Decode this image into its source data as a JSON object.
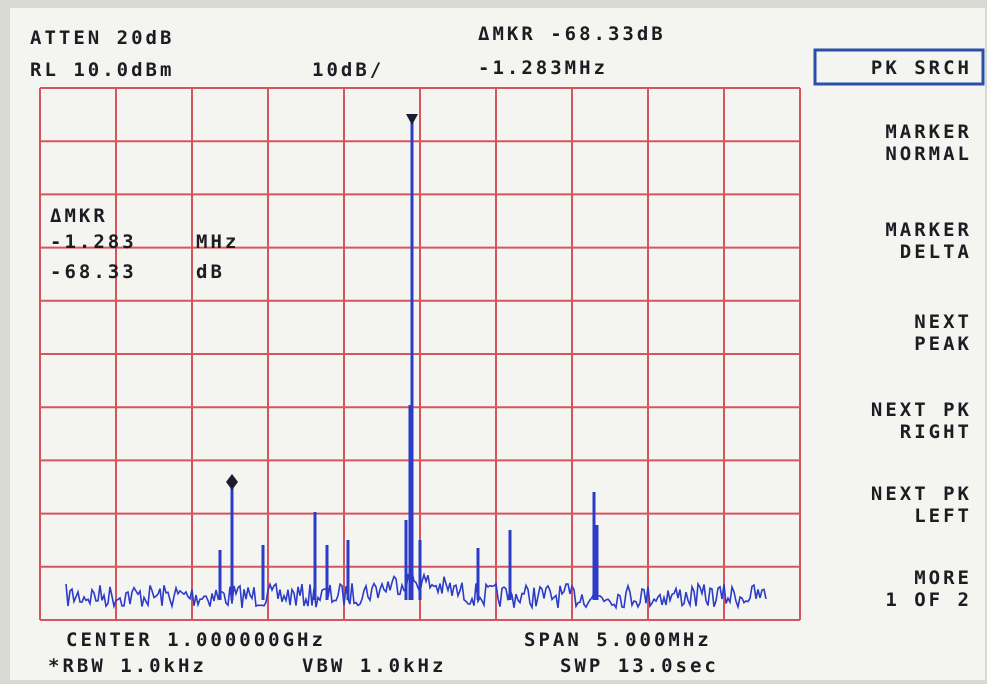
{
  "header": {
    "attenuation": "ATTEN 20dB",
    "ref_level": "RL 10.0dBm",
    "scale": "10dB/",
    "delta_marker": "ΔMKR -68.33dB",
    "delta_freq": "-1.283MHz"
  },
  "marker_readout": {
    "label": "ΔMKR",
    "freq": "-1.283",
    "freq_unit": "MHz",
    "level": "-68.33",
    "level_unit": "dB"
  },
  "softkeys": [
    {
      "lines": [
        "PK SRCH"
      ]
    },
    {
      "lines": [
        "MARKER",
        "NORMAL"
      ]
    },
    {
      "lines": [
        "MARKER",
        "DELTA"
      ]
    },
    {
      "lines": [
        "NEXT",
        "PEAK"
      ]
    },
    {
      "lines": [
        "NEXT PK",
        "RIGHT"
      ]
    },
    {
      "lines": [
        "NEXT PK",
        "LEFT"
      ]
    },
    {
      "lines": [
        "MORE",
        "1 OF 2"
      ]
    }
  ],
  "footer": {
    "center": "CENTER 1.000000GHz",
    "span": "SPAN 5.000MHz",
    "rbw": "*RBW 1.0kHz",
    "vbw": "VBW 1.0kHz",
    "sweep": "SWP 13.0sec"
  }
}
